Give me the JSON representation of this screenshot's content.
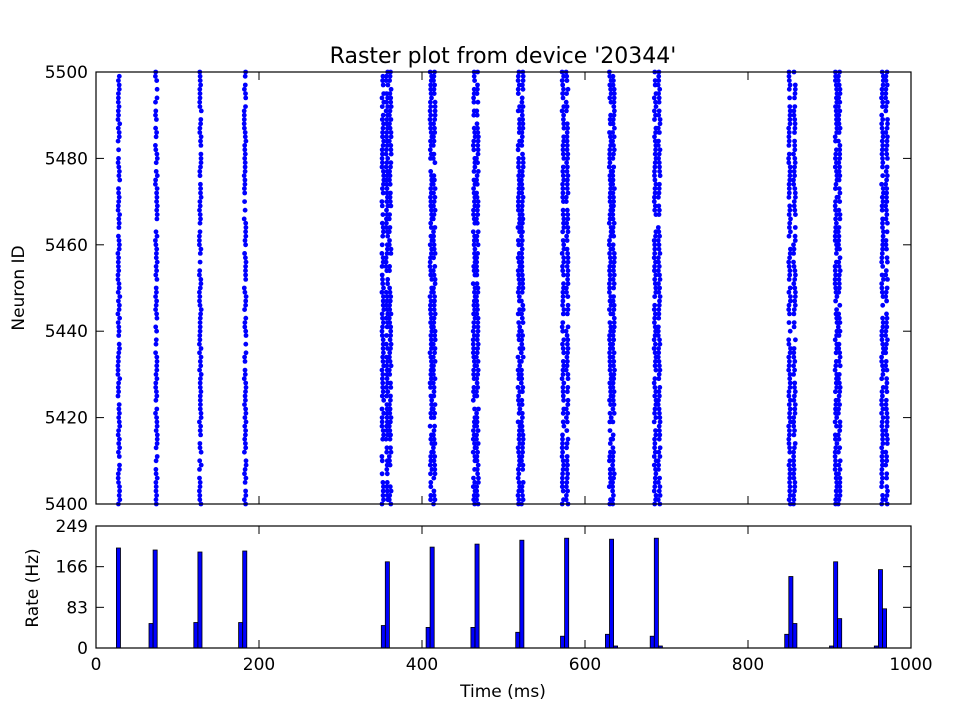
{
  "chart_data": [
    {
      "type": "scatter",
      "title": "Raster plot from device '20344'",
      "xlabel": "",
      "ylabel": "Neuron ID",
      "xlim": [
        0,
        1000
      ],
      "ylim": [
        5400,
        5500
      ],
      "yticks": [
        5400,
        5420,
        5440,
        5460,
        5480,
        5500
      ],
      "marker_color": "#0000ff",
      "series": [
        {
          "burst_times_ms": [
            28,
            74,
            128,
            183,
            352,
            357,
            361,
            411,
            415,
            464,
            468,
            519,
            523,
            573,
            578,
            631,
            635,
            686,
            691,
            851,
            857,
            908,
            912,
            965,
            970
          ],
          "neuron_range": [
            5400,
            5500
          ]
        }
      ]
    },
    {
      "type": "bar",
      "title": "",
      "xlabel": "Time (ms)",
      "ylabel": "Rate (Hz)",
      "xlim": [
        0,
        1000
      ],
      "ylim": [
        0,
        249
      ],
      "yticks": [
        0,
        83,
        166,
        249
      ],
      "xticks": [
        0,
        200,
        400,
        600,
        800,
        1000
      ],
      "bar_color": "#0000ff",
      "bin_width_ms": 5,
      "bins": [
        {
          "t": 25,
          "rate": 204
        },
        {
          "t": 65,
          "rate": 50
        },
        {
          "t": 70,
          "rate": 200
        },
        {
          "t": 120,
          "rate": 52
        },
        {
          "t": 125,
          "rate": 196
        },
        {
          "t": 175,
          "rate": 52
        },
        {
          "t": 180,
          "rate": 198
        },
        {
          "t": 350,
          "rate": 46
        },
        {
          "t": 355,
          "rate": 176
        },
        {
          "t": 405,
          "rate": 42
        },
        {
          "t": 410,
          "rate": 206
        },
        {
          "t": 460,
          "rate": 42
        },
        {
          "t": 465,
          "rate": 212
        },
        {
          "t": 515,
          "rate": 32
        },
        {
          "t": 520,
          "rate": 220
        },
        {
          "t": 570,
          "rate": 24
        },
        {
          "t": 575,
          "rate": 224
        },
        {
          "t": 625,
          "rate": 28
        },
        {
          "t": 630,
          "rate": 222
        },
        {
          "t": 635,
          "rate": 4
        },
        {
          "t": 680,
          "rate": 24
        },
        {
          "t": 685,
          "rate": 224
        },
        {
          "t": 690,
          "rate": 4
        },
        {
          "t": 845,
          "rate": 28
        },
        {
          "t": 850,
          "rate": 146
        },
        {
          "t": 855,
          "rate": 50
        },
        {
          "t": 900,
          "rate": 4
        },
        {
          "t": 905,
          "rate": 176
        },
        {
          "t": 910,
          "rate": 60
        },
        {
          "t": 955,
          "rate": 4
        },
        {
          "t": 960,
          "rate": 160
        },
        {
          "t": 965,
          "rate": 80
        }
      ]
    }
  ]
}
